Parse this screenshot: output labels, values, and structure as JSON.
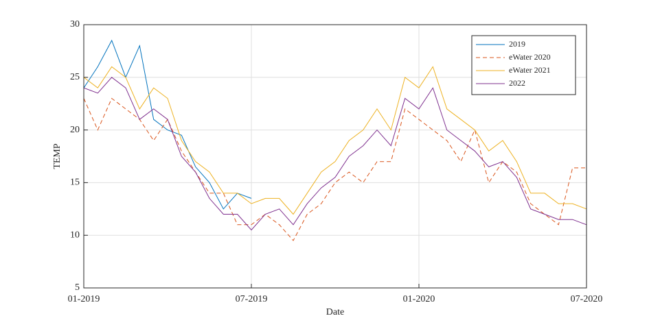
{
  "chart_data": {
    "type": "line",
    "xlabel": "Date",
    "ylabel": "TEMP",
    "x": [
      0,
      0.5,
      1,
      1.5,
      2,
      2.5,
      3,
      3.5,
      4,
      4.5,
      5,
      5.5,
      6,
      6.5,
      7,
      7.5,
      8,
      8.5,
      9,
      9.5,
      10,
      10.5,
      11,
      11.5,
      12,
      12.5,
      13,
      13.5,
      14,
      14.5,
      15,
      15.5,
      16,
      16.5,
      17,
      17.5,
      18
    ],
    "xlim": [
      0,
      18
    ],
    "xticks": [
      {
        "value": 0,
        "label": "01-2019"
      },
      {
        "value": 6,
        "label": "07-2019"
      },
      {
        "value": 12,
        "label": "01-2020"
      },
      {
        "value": 18,
        "label": "07-2020"
      }
    ],
    "ylim": [
      5,
      30
    ],
    "yticks": [
      5,
      10,
      15,
      20,
      25,
      30
    ],
    "grid": true,
    "legend": "upper right",
    "series": [
      {
        "name": "2019",
        "color": "#0072bd",
        "dash": false,
        "values": [
          24,
          26,
          28.5,
          25,
          28,
          21,
          20,
          19.5,
          16.5,
          15,
          12.5,
          14,
          13.5,
          null,
          null,
          null,
          null,
          null,
          null,
          null,
          null,
          null,
          null,
          null,
          null,
          null,
          null,
          null,
          null,
          null,
          null,
          null,
          null,
          null,
          null,
          null,
          null
        ]
      },
      {
        "name": "eWater 2020",
        "color": "#d95319",
        "dash": true,
        "values": [
          23,
          20,
          23,
          22,
          21,
          19,
          21,
          18,
          16,
          14,
          14,
          11,
          11,
          12,
          11,
          9.5,
          12,
          13,
          15,
          16,
          15,
          17,
          17,
          22,
          21,
          20,
          19,
          17,
          20,
          15,
          17,
          16,
          13,
          12,
          11,
          16.4,
          16.4
        ]
      },
      {
        "name": "eWater 2021",
        "color": "#edb120",
        "dash": false,
        "values": [
          25,
          24,
          26,
          25,
          22,
          24,
          23,
          19,
          17,
          16,
          14,
          14,
          13,
          13.5,
          13.5,
          12,
          14,
          16,
          17,
          19,
          20,
          22,
          20,
          25,
          24,
          26,
          22,
          21,
          20,
          18,
          19,
          17,
          14,
          14,
          13,
          13,
          12.5
        ]
      },
      {
        "name": "2022",
        "color": "#7e2f8e",
        "dash": false,
        "values": [
          24,
          23.5,
          25,
          24,
          21,
          22,
          21,
          17.5,
          16,
          13.5,
          12,
          12,
          10.5,
          12,
          12.5,
          11,
          13,
          14.5,
          15.5,
          17.5,
          18.5,
          20,
          18.5,
          23,
          22,
          24,
          20,
          19,
          18,
          16.5,
          17,
          15.5,
          12.5,
          12,
          11.5,
          11.5,
          11
        ]
      }
    ]
  }
}
